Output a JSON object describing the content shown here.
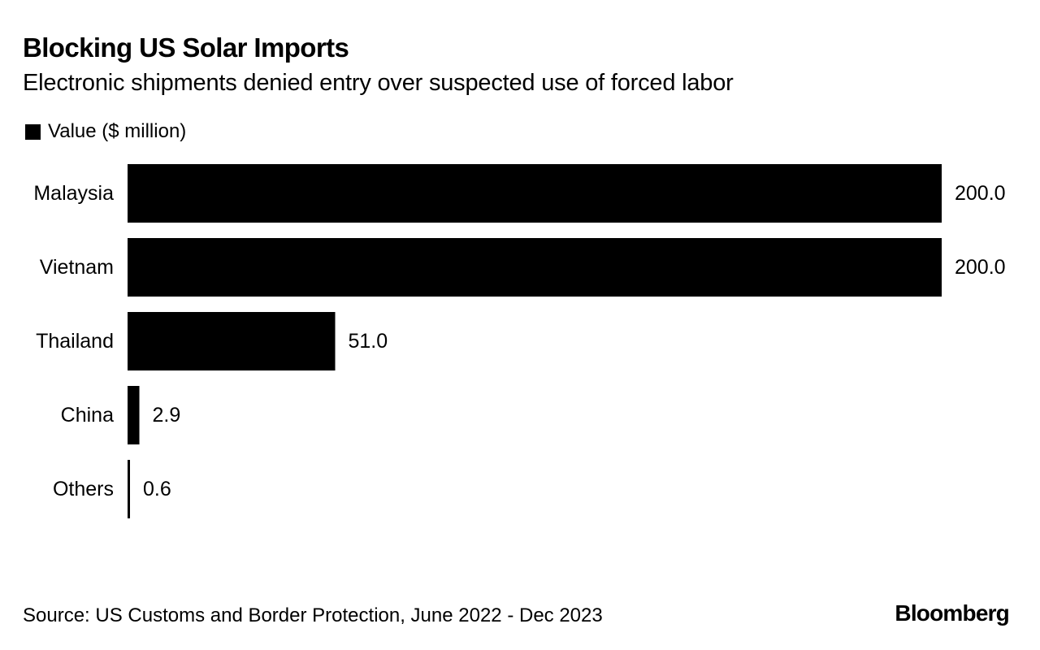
{
  "header": {
    "title": "Blocking US Solar Imports",
    "subtitle": "Electronic shipments denied entry over suspected use of forced labor"
  },
  "legend": {
    "label": "Value ($ million)",
    "color": "#000000"
  },
  "chart_data": {
    "type": "bar",
    "orientation": "horizontal",
    "title": "Blocking US Solar Imports",
    "subtitle": "Electronic shipments denied entry over suspected use of forced labor",
    "categories": [
      "Malaysia",
      "Vietnam",
      "Thailand",
      "China",
      "Others"
    ],
    "series": [
      {
        "name": "Value ($ million)",
        "values": [
          200.0,
          200.0,
          51.0,
          2.9,
          0.6
        ],
        "labels": [
          "200.0",
          "200.0",
          "51.0",
          "2.9",
          "0.6"
        ],
        "color": "#000000"
      }
    ],
    "xlim": [
      0,
      200
    ],
    "grid": false,
    "legend_position": "top-left"
  },
  "footer": {
    "source": "Source: US Customs and Border Protection, June 2022 - Dec 2023",
    "brand": "Bloomberg"
  }
}
